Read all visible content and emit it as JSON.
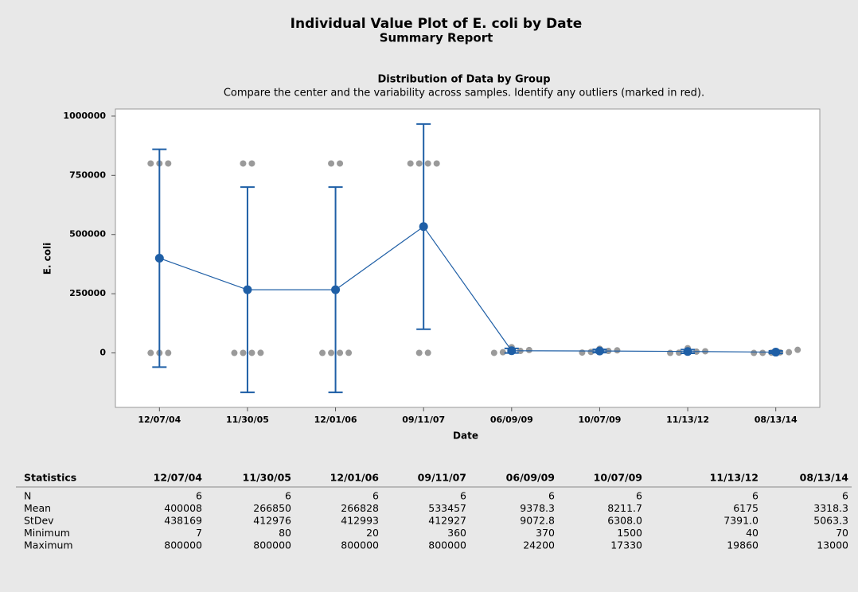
{
  "header": {
    "title": "Individual Value Plot of E. coli by Date",
    "subtitle": "Summary Report"
  },
  "chart_data": {
    "type": "individual_value",
    "title": "Distribution of Data by Group",
    "subtitle": "Compare the center and the variability across samples. Identify any outliers (marked in red).",
    "x_label": "Date",
    "y_label": "E. coli",
    "categories": [
      "12/07/04",
      "11/30/05",
      "12/01/06",
      "09/11/07",
      "06/09/09",
      "10/07/09",
      "11/13/12",
      "08/13/14"
    ],
    "means": [
      400008,
      266850,
      266828,
      533457,
      9378.3,
      8211.7,
      6175,
      3318.3
    ],
    "ci_half_width": [
      459900,
      433400,
      433400,
      433300,
      9520,
      6620,
      7760,
      5310
    ],
    "mean_color": "#1f5fa6",
    "points": [
      [
        7,
        15,
        26,
        800000,
        800000,
        800000
      ],
      [
        80,
        200,
        320,
        500,
        800000,
        800000
      ],
      [
        20,
        148,
        300,
        500,
        800000,
        800000
      ],
      [
        360,
        382,
        800000,
        800000,
        800000,
        800000
      ],
      [
        370,
        3000,
        8000,
        8500,
        12200,
        24200
      ],
      [
        1500,
        4000,
        7000,
        8440,
        11000,
        17330
      ],
      [
        40,
        1200,
        3500,
        5450,
        7000,
        19860
      ],
      [
        70,
        300,
        1200,
        2340,
        3000,
        13000
      ]
    ],
    "point_color": "#9a9a9a",
    "ylim": [
      -230000,
      1030000
    ],
    "yticks": [
      0,
      250000,
      500000,
      750000,
      1000000
    ]
  },
  "table": {
    "header": [
      "Statistics",
      "12/07/04",
      "11/30/05",
      "12/01/06",
      "09/11/07",
      "06/09/09",
      "10/07/09",
      "11/13/12",
      "08/13/14"
    ],
    "rows": [
      [
        "N",
        "6",
        "6",
        "6",
        "6",
        "6",
        "6",
        "6",
        "6"
      ],
      [
        "Mean",
        "400008",
        "266850",
        "266828",
        "533457",
        "9378.3",
        "8211.7",
        "6175",
        "3318.3"
      ],
      [
        "StDev",
        "438169",
        "412976",
        "412993",
        "412927",
        "9072.8",
        "6308.0",
        "7391.0",
        "5063.3"
      ],
      [
        "Minimum",
        "7",
        "80",
        "20",
        "360",
        "370",
        "1500",
        "40",
        "70"
      ],
      [
        "Maximum",
        "800000",
        "800000",
        "800000",
        "800000",
        "24200",
        "17330",
        "19860",
        "13000"
      ]
    ]
  }
}
